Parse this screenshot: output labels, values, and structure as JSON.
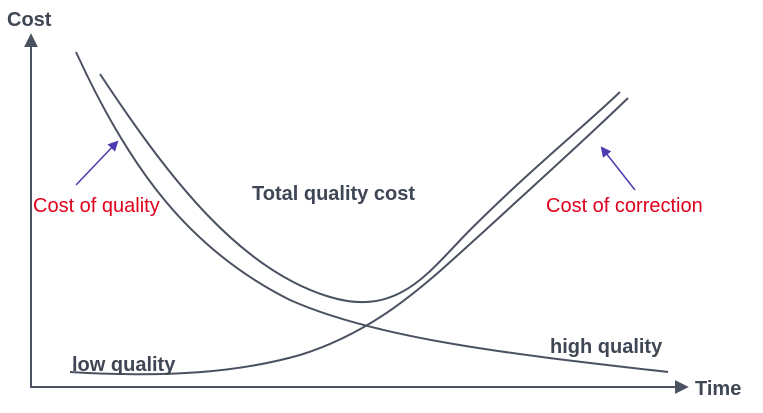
{
  "diagram": {
    "y_axis_label": "Cost",
    "x_axis_label": "Time",
    "labels": {
      "cost_of_quality": "Cost of quality",
      "total_quality_cost": "Total quality cost",
      "cost_of_correction": "Cost of correction",
      "low_quality": "low quality",
      "high_quality": "high quality"
    },
    "colors": {
      "axis": "#4a5160",
      "curve": "#4a5160",
      "arrow": "#4b3bb0",
      "label_dark": "#3f4654",
      "label_red": "#e0001b"
    }
  }
}
